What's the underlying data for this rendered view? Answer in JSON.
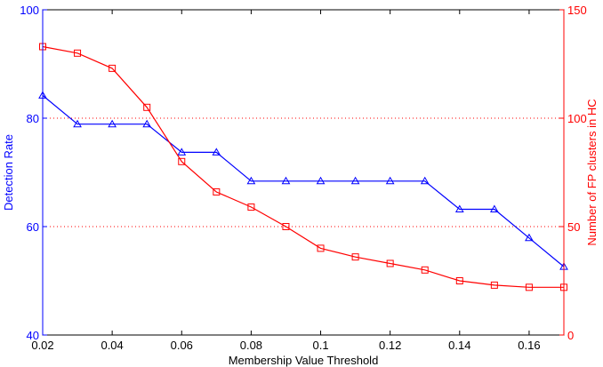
{
  "chart_data": {
    "type": "line",
    "title": "",
    "xlabel": "Membership Value Threshold",
    "ylabel_left": "Detection Rate",
    "ylabel_right": "Number of FP clusters in HC",
    "xlim": [
      0.02,
      0.17
    ],
    "ylim_left": [
      40,
      100
    ],
    "ylim_right": [
      0,
      150
    ],
    "x_ticks": [
      "0.02",
      "0.04",
      "0.06",
      "0.08",
      "0.1",
      "0.12",
      "0.14",
      "0.16"
    ],
    "y_left_ticks": [
      "40",
      "60",
      "80",
      "100"
    ],
    "y_right_ticks": [
      "0",
      "50",
      "100",
      "150"
    ],
    "grid": "dotted horizontal lines at right-axis ticks 50 and 100",
    "x": [
      0.02,
      0.03,
      0.04,
      0.05,
      0.06,
      0.07,
      0.08,
      0.09,
      0.1,
      0.11,
      0.12,
      0.13,
      0.14,
      0.15,
      0.16,
      0.17
    ],
    "series": [
      {
        "axis": "left",
        "color": "#0000ff",
        "marker": "triangle",
        "values": [
          84.2,
          78.9,
          78.9,
          78.9,
          73.7,
          73.7,
          68.4,
          68.4,
          68.4,
          68.4,
          68.4,
          68.4,
          63.2,
          63.2,
          57.9,
          52.6
        ]
      },
      {
        "axis": "right",
        "color": "#ff0000",
        "marker": "square",
        "values": [
          133,
          130,
          123,
          105,
          80,
          66,
          59,
          50,
          40,
          36,
          33,
          30,
          25,
          23,
          22,
          22
        ]
      }
    ]
  }
}
